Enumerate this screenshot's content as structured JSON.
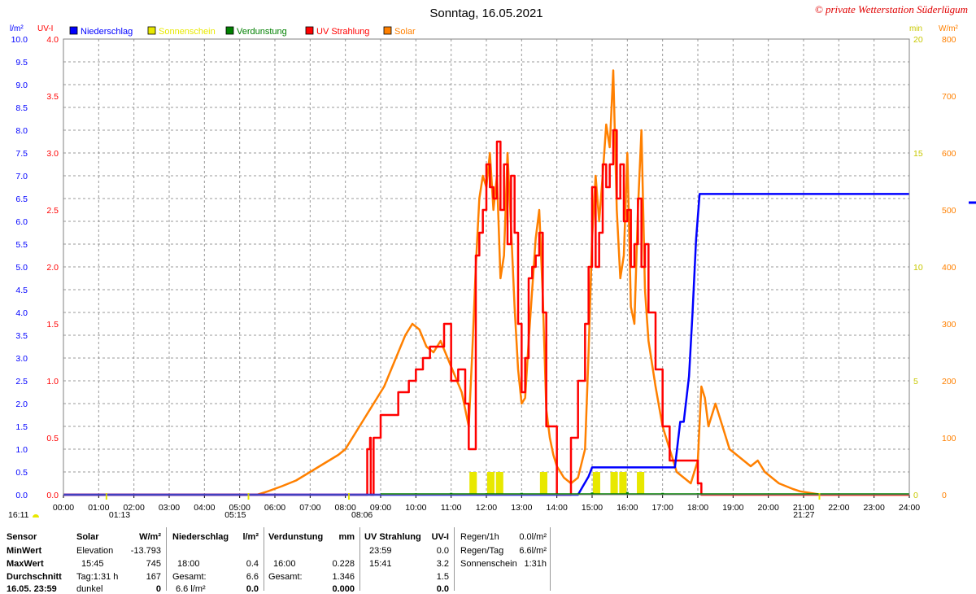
{
  "header": {
    "title": "Sonntag, 16.05.2021",
    "copyright": "© private Wetterstation Süderlügum",
    "left_units": [
      "l/m²",
      "UV-I"
    ],
    "right_units": [
      "min",
      "W/m²"
    ]
  },
  "legend": [
    {
      "label": "Niederschlag",
      "color": "#0000ff"
    },
    {
      "label": "Sonnenschein",
      "color": "#e8e800"
    },
    {
      "label": "Verdunstung",
      "color": "#008000"
    },
    {
      "label": "UV Strahlung",
      "color": "#ff0000"
    },
    {
      "label": "Solar",
      "color": "#ff8000"
    }
  ],
  "colors": {
    "niederschlag": "#0000ff",
    "sonnenschein": "#e8e800",
    "verdunstung": "#008000",
    "uv": "#ff0000",
    "solar": "#ff8000",
    "grid": "#999999",
    "axis_left_precip": "#0000ff",
    "axis_left_uv": "#ff0000",
    "axis_right_min": "#c8c800",
    "axis_right_solar": "#ff8000"
  },
  "chart_data": {
    "type": "line",
    "grid": true,
    "x_ticks": [
      "00:00",
      "01:00",
      "02:00",
      "03:00",
      "04:00",
      "05:00",
      "06:00",
      "07:00",
      "08:00",
      "09:00",
      "10:00",
      "11:00",
      "12:00",
      "13:00",
      "14:00",
      "15:00",
      "16:00",
      "17:00",
      "18:00",
      "19:00",
      "20:00",
      "21:00",
      "22:00",
      "23:00",
      "24:00"
    ],
    "axes": {
      "precip": {
        "label": "l/m²",
        "range": [
          0,
          10
        ],
        "ticks": [
          "0.0",
          "0.5",
          "1.0",
          "1.5",
          "2.0",
          "2.5",
          "3.0",
          "3.5",
          "4.0",
          "4.5",
          "5.0",
          "5.5",
          "6.0",
          "6.5",
          "7.0",
          "7.5",
          "8.0",
          "8.5",
          "9.0",
          "9.5",
          "10.0"
        ]
      },
      "uv": {
        "label": "UV-I",
        "range": [
          0,
          4
        ],
        "ticks": [
          "0.0",
          "0.5",
          "1.0",
          "1.5",
          "2.0",
          "2.5",
          "3.0",
          "3.5",
          "4.0"
        ]
      },
      "sun_minutes": {
        "label": "min",
        "range": [
          0,
          20
        ],
        "ticks": [
          "0",
          "5",
          "10",
          "15",
          "20"
        ]
      },
      "solar": {
        "label": "W/m²",
        "range": [
          0,
          800
        ],
        "ticks": [
          "0",
          "100",
          "200",
          "300",
          "400",
          "500",
          "600",
          "700",
          "800"
        ]
      }
    },
    "series": [
      {
        "name": "Niederschlag",
        "axis": "precip",
        "x": [
          0,
          14.6,
          14.75,
          14.9,
          15.0,
          16.0,
          16.5,
          17.35,
          17.5,
          17.6,
          17.75,
          17.85,
          17.95,
          18.05,
          18.1,
          24.0
        ],
        "y": [
          0,
          0,
          0.2,
          0.4,
          0.6,
          0.6,
          0.6,
          0.6,
          1.6,
          1.6,
          2.6,
          4.0,
          5.6,
          6.6,
          6.6,
          6.6
        ]
      },
      {
        "name": "Sonnenschein",
        "axis": "sun_minutes",
        "type": "bar",
        "x": [
          11.75,
          12.25,
          12.5,
          13.75,
          15.25,
          15.75,
          16.0,
          16.5
        ],
        "y": [
          1,
          1,
          1,
          1,
          1,
          1,
          1,
          1
        ]
      },
      {
        "name": "Verdunstung",
        "axis": "precip",
        "type": "bar",
        "x": [
          9.0,
          10.0,
          11.0,
          12.0,
          13.0,
          14.0,
          15.0,
          16.0,
          17.0,
          18.0,
          19.0,
          20.0,
          21.0
        ],
        "y": [
          0.02,
          0.03,
          0.04,
          0.03,
          0.04,
          0.03,
          0.05,
          0.06,
          0.04,
          0.03,
          0.02,
          0.02,
          0.01
        ]
      },
      {
        "name": "UV Strahlung",
        "axis": "uv",
        "x": [
          0,
          8.6,
          8.62,
          8.7,
          8.72,
          8.8,
          9.0,
          9.3,
          9.5,
          9.7,
          9.8,
          10.0,
          10.2,
          10.4,
          10.6,
          10.8,
          11.0,
          11.2,
          11.4,
          11.5,
          11.7,
          11.8,
          11.9,
          12.0,
          12.1,
          12.2,
          12.3,
          12.4,
          12.5,
          12.6,
          12.7,
          12.8,
          12.9,
          13.0,
          13.1,
          13.2,
          13.3,
          13.4,
          13.5,
          13.6,
          13.7,
          13.8,
          13.9,
          14.0,
          14.2,
          14.25,
          14.4,
          14.6,
          14.8,
          14.9,
          15.0,
          15.1,
          15.2,
          15.3,
          15.4,
          15.5,
          15.6,
          15.7,
          15.8,
          15.9,
          16.0,
          16.1,
          16.2,
          16.3,
          16.4,
          16.5,
          16.6,
          16.8,
          17.0,
          17.2,
          17.4,
          17.6,
          17.8,
          17.9,
          18.0,
          18.1,
          18.15,
          18.2,
          24.0
        ],
        "y": [
          0,
          0,
          0.4,
          0.5,
          0,
          0.5,
          0.7,
          0.7,
          0.9,
          0.9,
          1.0,
          1.1,
          1.2,
          1.3,
          1.3,
          1.5,
          1.0,
          1.1,
          0.8,
          0.4,
          2.1,
          2.3,
          2.5,
          2.9,
          2.7,
          2.6,
          3.1,
          2.5,
          2.9,
          2.2,
          2.8,
          2.3,
          1.5,
          0.9,
          1.2,
          1.9,
          2.0,
          2.1,
          2.3,
          1.6,
          0.6,
          0.6,
          0.6,
          0.0,
          0.0,
          0.0,
          0.5,
          1.0,
          1.5,
          2.0,
          2.7,
          2.0,
          2.3,
          2.9,
          2.7,
          2.9,
          3.2,
          2.6,
          2.9,
          2.4,
          2.5,
          2.0,
          2.2,
          2.6,
          2.0,
          2.2,
          1.6,
          1.1,
          0.6,
          0.3,
          0.3,
          0.3,
          0.3,
          0.3,
          0.1,
          0.0,
          0.0,
          0.0,
          0.0
        ]
      },
      {
        "name": "Solar",
        "axis": "solar",
        "x": [
          0,
          5.5,
          5.8,
          6.2,
          6.6,
          7.0,
          7.4,
          7.8,
          8.0,
          8.3,
          8.6,
          8.9,
          9.1,
          9.3,
          9.5,
          9.7,
          9.9,
          10.1,
          10.3,
          10.5,
          10.7,
          10.9,
          11.1,
          11.3,
          11.5,
          11.6,
          11.7,
          11.8,
          11.9,
          12.0,
          12.1,
          12.2,
          12.3,
          12.4,
          12.5,
          12.6,
          12.7,
          12.8,
          12.9,
          13.0,
          13.1,
          13.2,
          13.3,
          13.4,
          13.5,
          13.6,
          13.7,
          13.8,
          13.9,
          14.0,
          14.1,
          14.2,
          14.4,
          14.6,
          14.8,
          14.9,
          15.0,
          15.1,
          15.2,
          15.3,
          15.4,
          15.5,
          15.6,
          15.7,
          15.8,
          15.9,
          16.0,
          16.1,
          16.2,
          16.3,
          16.4,
          16.5,
          16.6,
          16.8,
          17.0,
          17.2,
          17.4,
          17.6,
          17.8,
          18.0,
          18.1,
          18.2,
          18.3,
          18.5,
          18.7,
          18.9,
          19.1,
          19.3,
          19.5,
          19.7,
          19.9,
          20.1,
          20.3,
          20.5,
          20.7,
          20.9,
          21.1,
          21.3,
          21.5,
          24.0
        ],
        "y": [
          0,
          0,
          6,
          15,
          25,
          40,
          55,
          70,
          80,
          110,
          140,
          170,
          190,
          220,
          250,
          280,
          300,
          290,
          260,
          250,
          270,
          240,
          210,
          180,
          120,
          250,
          400,
          520,
          560,
          540,
          600,
          500,
          560,
          380,
          420,
          600,
          470,
          330,
          220,
          160,
          170,
          270,
          360,
          450,
          500,
          350,
          150,
          100,
          70,
          50,
          40,
          30,
          20,
          30,
          80,
          250,
          450,
          560,
          480,
          560,
          650,
          610,
          745,
          500,
          380,
          420,
          600,
          330,
          300,
          500,
          640,
          360,
          270,
          190,
          120,
          80,
          40,
          30,
          20,
          60,
          190,
          170,
          120,
          160,
          120,
          80,
          70,
          60,
          50,
          60,
          40,
          30,
          20,
          15,
          10,
          6,
          4,
          2,
          0,
          0
        ]
      }
    ],
    "markers": [
      {
        "text": "16:11",
        "pos": "left"
      },
      {
        "text": "01:13",
        "x": 1.22
      },
      {
        "text": "05:15",
        "x": 5.25
      },
      {
        "text": "08:06",
        "x": 8.1
      },
      {
        "text": "21:27",
        "x": 21.45
      }
    ]
  },
  "table": {
    "sensor": {
      "header": "Sensor",
      "rows": [
        "MinWert",
        "MaxWert",
        "Durchschnitt",
        "16.05. 23:59"
      ]
    },
    "solar": {
      "header": "Solar",
      "unit": "W/m²",
      "rows": [
        {
          "label": "Elevation",
          "value": "-13.793"
        },
        {
          "label": "15:45",
          "value": "745"
        },
        {
          "label": "Tag:1:31 h",
          "value": "167"
        },
        {
          "label": "dunkel",
          "value": "0"
        }
      ]
    },
    "niederschlag": {
      "header": "Niederschlag",
      "unit": "l/m²",
      "rows": [
        {
          "label": "",
          "value": ""
        },
        {
          "label": "18:00",
          "value": "0.4"
        },
        {
          "label": "Gesamt:",
          "value": "6.6"
        },
        {
          "label": "6.6 l/m²",
          "value": "0.0"
        }
      ]
    },
    "verdunstung": {
      "header": "Verdunstung",
      "unit": "mm",
      "rows": [
        {
          "label": "",
          "value": ""
        },
        {
          "label": "16:00",
          "value": "0.228"
        },
        {
          "label": "Gesamt:",
          "value": "1.346"
        },
        {
          "label": "",
          "value": "0.000"
        }
      ]
    },
    "uv": {
      "header": "UV Strahlung",
      "unit": "UV-I",
      "rows": [
        {
          "label": "23:59",
          "value": "0.0"
        },
        {
          "label": "15:41",
          "value": "3.2"
        },
        {
          "label": "",
          "value": "1.5"
        },
        {
          "label": "",
          "value": "0.0"
        }
      ]
    },
    "regen": {
      "rows": [
        {
          "label": "Regen/1h",
          "value": "0.0l/m²"
        },
        {
          "label": "Regen/Tag",
          "value": "6.6l/m²"
        },
        {
          "label": "Sonnenschein",
          "value": "1:31h"
        }
      ]
    }
  }
}
